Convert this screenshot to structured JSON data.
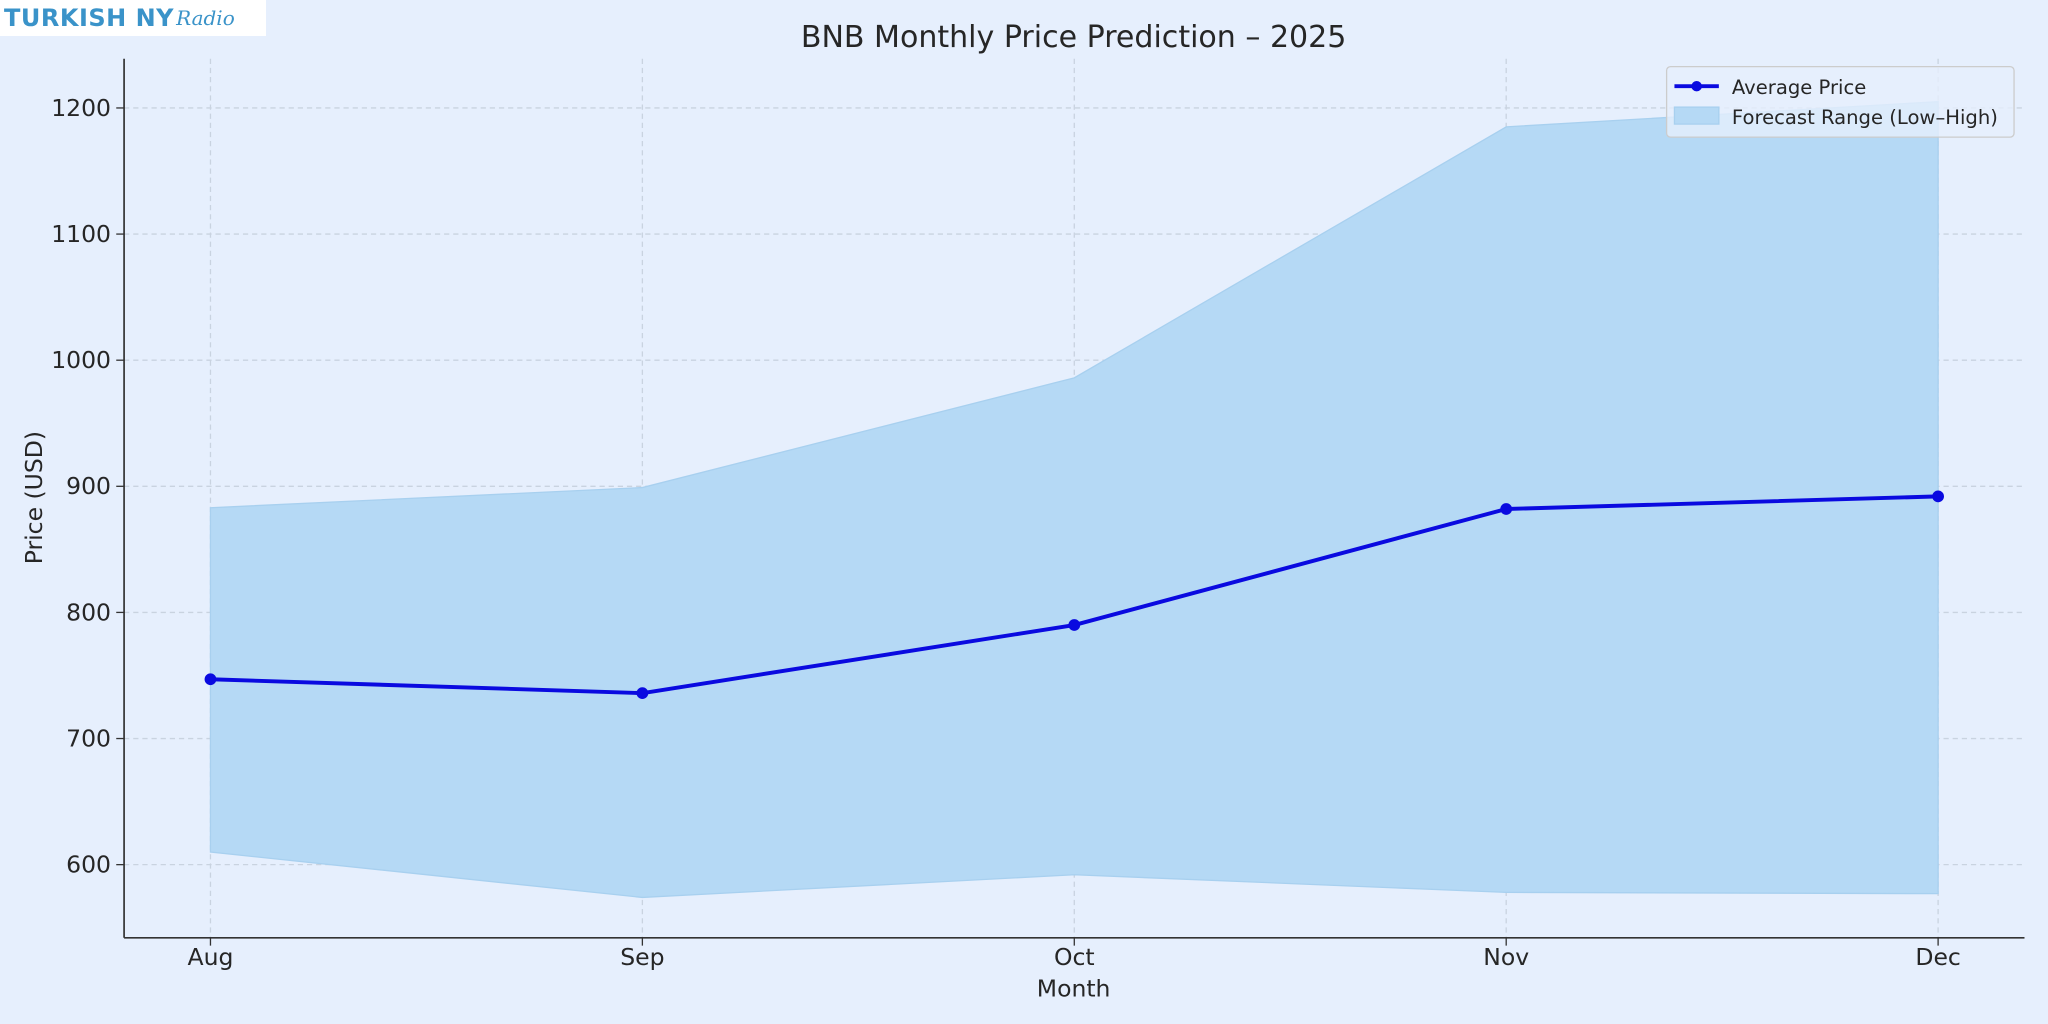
{
  "logo": {
    "main": "TURKISH NY",
    "script": "Radio"
  },
  "chart_data": {
    "type": "line",
    "title": "BNB Monthly Price Prediction – 2025",
    "xlabel": "Month",
    "ylabel": "Price (USD)",
    "categories": [
      "Aug",
      "Sep",
      "Oct",
      "Nov",
      "Dec"
    ],
    "series": [
      {
        "name": "Average Price",
        "type": "line",
        "color": "#0a0ae0",
        "values": [
          747,
          736,
          790,
          882,
          892
        ]
      },
      {
        "name": "Forecast Range (Low–High)",
        "type": "area",
        "color": "#b5d9f5",
        "low": [
          610,
          574,
          592,
          578,
          577
        ],
        "high": [
          883,
          899,
          986,
          1185,
          1205
        ]
      }
    ],
    "yticks": [
      600,
      700,
      800,
      900,
      1000,
      1100,
      1200
    ],
    "ylim": [
      542,
      1239
    ],
    "grid": true,
    "legend": "top-right"
  }
}
